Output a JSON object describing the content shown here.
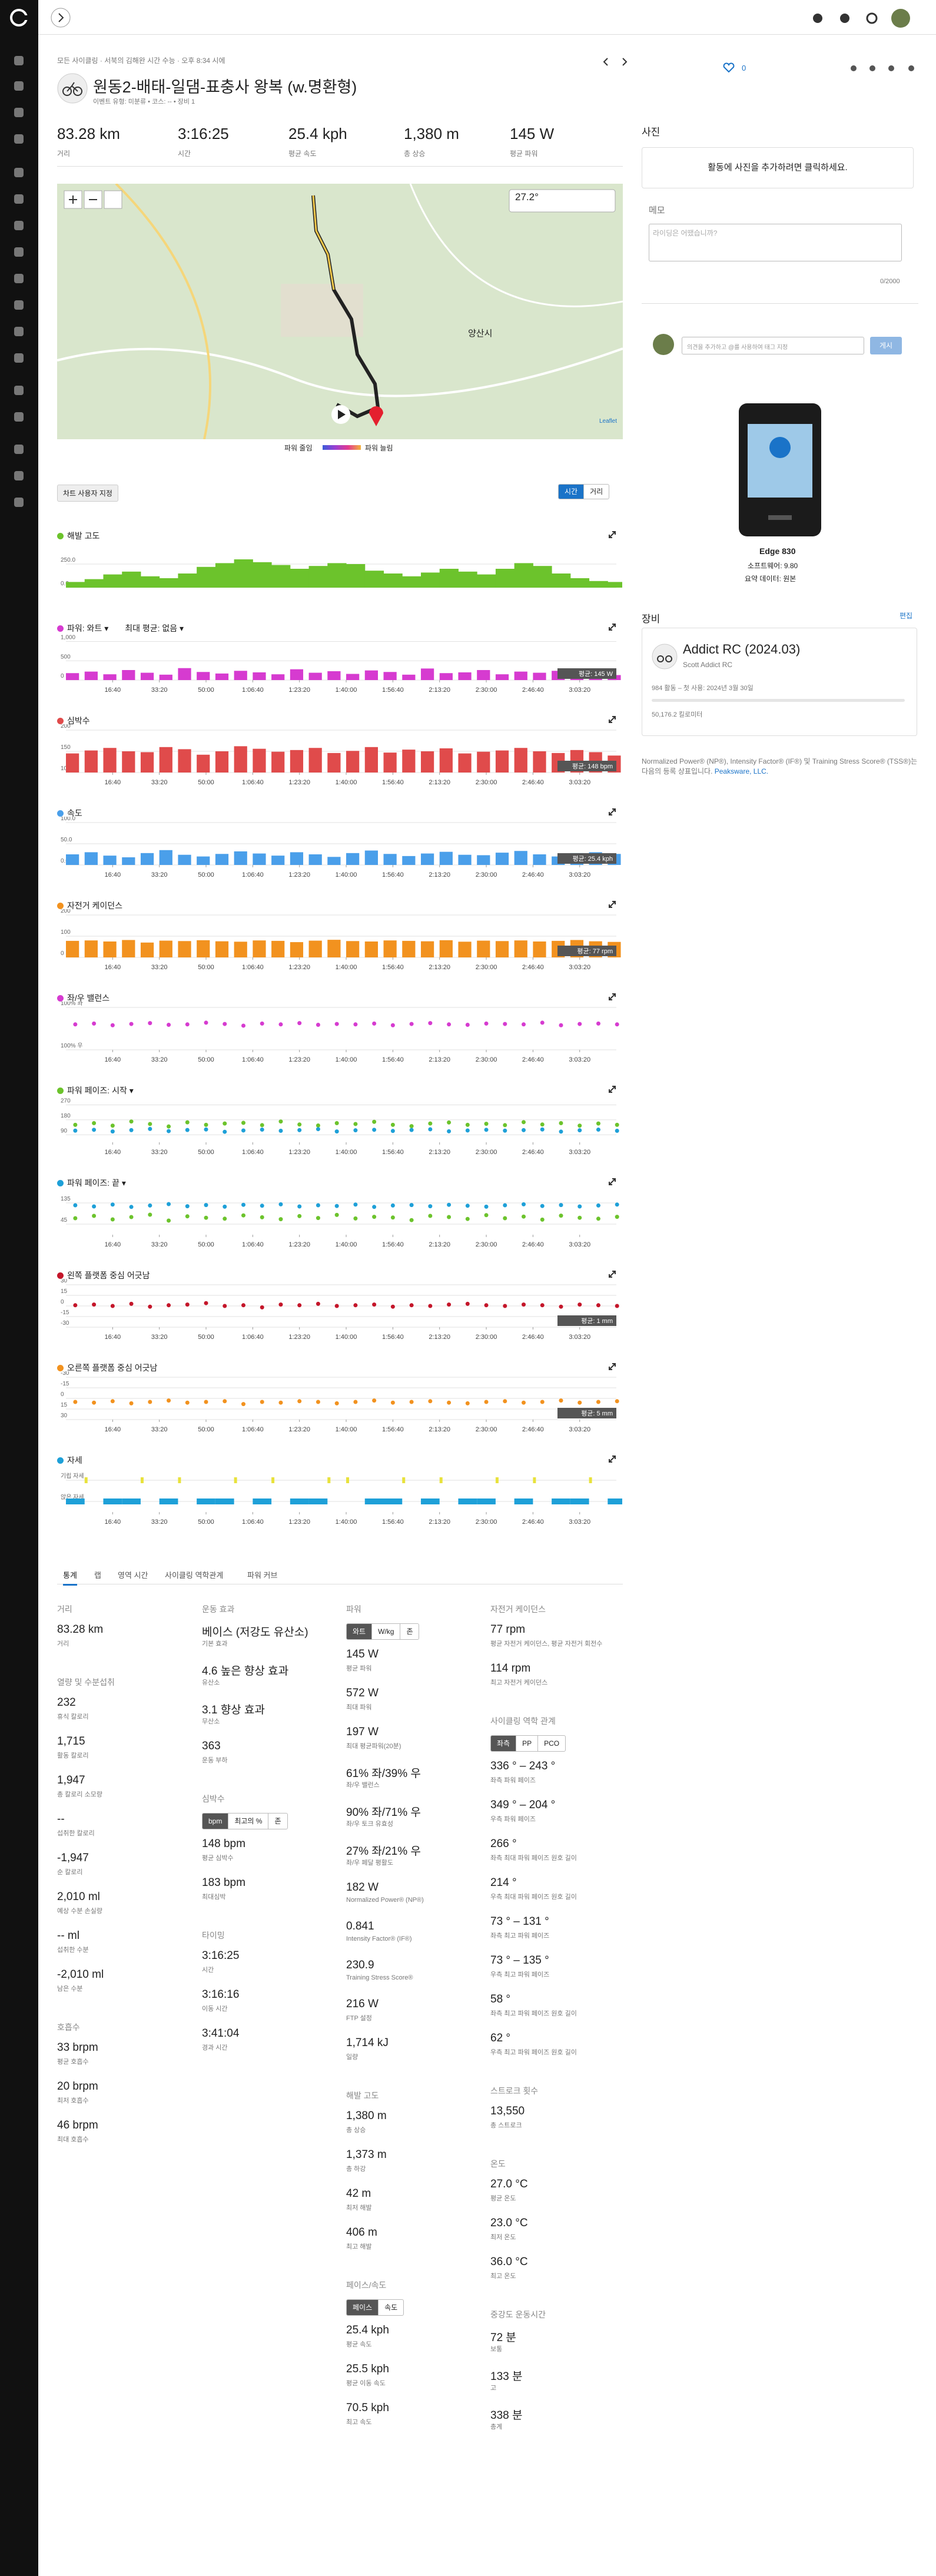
{
  "header": {
    "breadcrumb": "모든 사이클링 · 서북의 김해완 시간 수능 · 오후 8:34 시에",
    "title": "원동2-배태-일댐-표충사 왕복 (w.명환형)",
    "subtitle": "이벤트 유형: 미분류 • 코스: -- • 장비 1",
    "likes": "0"
  },
  "stats": [
    {
      "value": "83.28 km",
      "label": "거리"
    },
    {
      "value": "3:16:25",
      "label": "시간"
    },
    {
      "value": "25.4 kph",
      "label": "평균 속도"
    },
    {
      "value": "1,380 m",
      "label": "총 상승"
    },
    {
      "value": "145 W",
      "label": "평균 파워"
    }
  ],
  "map": {
    "temperature": "27.2°",
    "place": "양산시",
    "attribution": "Leaflet",
    "legend_low": "파워 줄임",
    "legend_high": "파워 늘림"
  },
  "controls": {
    "customize": "차트 사용자 지정",
    "time": "시간",
    "distance": "거리"
  },
  "time_axis": {
    "xlim": [
      0,
      11785
    ],
    "xticks": [
      {
        "value": 1000,
        "label": "16:40"
      },
      {
        "value": 2000,
        "label": "33:20"
      },
      {
        "value": 3000,
        "label": "50:00"
      },
      {
        "value": 4000,
        "label": "1:06:40"
      },
      {
        "value": 5000,
        "label": "1:23:20"
      },
      {
        "value": 6000,
        "label": "1:40:00"
      },
      {
        "value": 7000,
        "label": "1:56:40"
      },
      {
        "value": 8000,
        "label": "2:13:20"
      },
      {
        "value": 9000,
        "label": "2:30:00"
      },
      {
        "value": 10000,
        "label": "2:46:40"
      },
      {
        "value": 11000,
        "label": "3:03:20"
      }
    ],
    "x": [
      0,
      400,
      800,
      1200,
      1600,
      2000,
      2400,
      2800,
      3200,
      3600,
      4000,
      4400,
      4800,
      5200,
      5600,
      6000,
      6400,
      6800,
      7200,
      7600,
      8000,
      8400,
      8800,
      9200,
      9600,
      10000,
      10400,
      10800,
      11200,
      11600
    ]
  },
  "chart_data": [
    {
      "type": "area",
      "title": "해발 고도",
      "color": "#6cc32c",
      "x_labels": false,
      "ylim": [
        0,
        450
      ],
      "yticks": [
        {
          "value": 0,
          "label": "0.0"
        },
        {
          "value": 250,
          "label": "250.0"
        }
      ],
      "values": [
        60,
        90,
        140,
        170,
        120,
        100,
        150,
        220,
        260,
        300,
        270,
        240,
        200,
        230,
        260,
        250,
        180,
        150,
        120,
        160,
        200,
        170,
        140,
        200,
        260,
        230,
        150,
        100,
        70,
        60
      ]
    },
    {
      "type": "bar",
      "title": "파워: 와트 ▾",
      "subtitle": "최대 평균: 없음 ▾",
      "color": "#d63bd0",
      "x_labels": true,
      "ylim": [
        0,
        1100
      ],
      "yticks": [
        0,
        500,
        {
          "value": 1000,
          "label": "1,000"
        }
      ],
      "badge": "평균: 145 W",
      "values": [
        180,
        220,
        150,
        260,
        190,
        140,
        310,
        210,
        170,
        240,
        200,
        150,
        280,
        190,
        230,
        160,
        250,
        210,
        140,
        300,
        180,
        200,
        260,
        150,
        220,
        190,
        240,
        170,
        210,
        130
      ]
    },
    {
      "type": "bar",
      "title": "심박수",
      "color": "#e04b4b",
      "x_labels": true,
      "ylim": [
        100,
        200
      ],
      "yticks": [
        100,
        150,
        200
      ],
      "badge": "평균: 148 bpm",
      "values": [
        145,
        152,
        158,
        150,
        148,
        160,
        155,
        142,
        150,
        162,
        156,
        149,
        153,
        158,
        146,
        151,
        160,
        147,
        154,
        150,
        157,
        145,
        149,
        152,
        158,
        150,
        146,
        153,
        148,
        140
      ]
    },
    {
      "type": "bar",
      "title": "속도",
      "color": "#4a9fea",
      "x_labels": true,
      "ylim": [
        0,
        100
      ],
      "yticks": [
        {
          "value": 0,
          "label": "0.0"
        },
        {
          "value": 50,
          "label": "50.0"
        },
        {
          "value": 100,
          "label": "100.0"
        }
      ],
      "badge": "평균: 25.4 kph",
      "values": [
        25,
        30,
        22,
        18,
        28,
        35,
        24,
        20,
        26,
        32,
        27,
        22,
        30,
        25,
        19,
        28,
        34,
        26,
        21,
        27,
        31,
        24,
        23,
        29,
        33,
        25,
        20,
        28,
        30,
        26
      ]
    },
    {
      "type": "bar",
      "title": "자전거 케이던스",
      "color": "#f2921f",
      "x_labels": true,
      "ylim": [
        0,
        200
      ],
      "yticks": [
        0,
        100,
        200
      ],
      "badge": "평균: 77 rpm",
      "values": [
        78,
        80,
        75,
        82,
        70,
        79,
        77,
        81,
        76,
        74,
        80,
        78,
        72,
        79,
        83,
        77,
        75,
        80,
        78,
        76,
        81,
        74,
        79,
        77,
        80,
        75,
        78,
        82,
        76,
        73
      ]
    },
    {
      "type": "scatter",
      "title": "좌/우 밸런스",
      "color": "#d63bd0",
      "x_labels": true,
      "ylim": [
        0,
        100
      ],
      "yticks": [
        {
          "value": 100,
          "label": "100% 좌"
        },
        {
          "value": 0,
          "label": "100% 우"
        }
      ],
      "values": [
        60,
        62,
        58,
        61,
        63,
        59,
        60,
        64,
        61,
        57,
        62,
        60,
        63,
        59,
        61,
        60,
        62,
        58,
        61,
        63,
        60,
        59,
        62,
        61,
        60,
        64,
        58,
        61,
        62,
        60
      ]
    },
    {
      "type": "scatter",
      "title": "파워 페이즈: 시작 ▾",
      "color": "#6cc32c",
      "x_labels": true,
      "ylim": [
        45,
        300
      ],
      "yticks": [
        270,
        180,
        90
      ],
      "series": [
        {
          "color": "#6cc32c",
          "values": [
            150,
            160,
            145,
            170,
            155,
            140,
            165,
            150,
            158,
            162,
            148,
            170,
            152,
            146,
            160,
            155,
            168,
            150,
            142,
            158,
            164,
            150,
            156,
            148,
            166,
            152,
            160,
            145,
            158,
            150
          ]
        },
        {
          "color": "#1ea0d8",
          "values": [
            115,
            120,
            110,
            118,
            125,
            112,
            119,
            122,
            108,
            116,
            121,
            114,
            118,
            124,
            110,
            117,
            120,
            113,
            119,
            123,
            111,
            116,
            120,
            115,
            118,
            122,
            109,
            117,
            121,
            114
          ]
        }
      ]
    },
    {
      "type": "scatter",
      "title": "파워 페이즈: 끝 ▾",
      "color": "#1ea0d8",
      "x_labels": true,
      "ylim": [
        0,
        180
      ],
      "yticks": [
        135,
        45
      ],
      "series": [
        {
          "color": "#1ea0d8",
          "values": [
            125,
            120,
            128,
            118,
            124,
            130,
            121,
            126,
            119,
            127,
            123,
            129,
            120,
            125,
            122,
            128,
            118,
            124,
            126,
            121,
            127,
            123,
            119,
            125,
            129,
            122,
            126,
            120,
            124,
            128
          ]
        },
        {
          "color": "#6cc32c",
          "values": [
            70,
            80,
            65,
            75,
            85,
            60,
            78,
            72,
            68,
            82,
            74,
            66,
            79,
            71,
            84,
            69,
            76,
            73,
            62,
            80,
            75,
            67,
            83,
            70,
            77,
            64,
            81,
            72,
            68,
            76
          ]
        }
      ]
    },
    {
      "type": "scatter",
      "title": "왼쪽 플랫폼 중심 어긋남",
      "color": "#c4162a",
      "x_labels": true,
      "ylim": [
        -30,
        30
      ],
      "yticks": [
        30,
        15,
        0,
        -15,
        -30
      ],
      "badge": "평균: 1 mm",
      "values": [
        1,
        2,
        0,
        3,
        -1,
        1,
        2,
        4,
        0,
        1,
        -2,
        2,
        1,
        3,
        0,
        1,
        2,
        -1,
        1,
        0,
        2,
        3,
        1,
        0,
        2,
        1,
        -1,
        2,
        1,
        0
      ]
    },
    {
      "type": "scatter",
      "title": "오른쪽 플랫폼 중심 어긋남",
      "color": "#f2921f",
      "x_labels": true,
      "ylim": [
        30,
        -30
      ],
      "yticks": [
        -30,
        -15,
        0,
        15,
        30
      ],
      "badge": "평균: 5 mm",
      "values": [
        5,
        6,
        4,
        7,
        5,
        3,
        6,
        5,
        4,
        8,
        5,
        6,
        4,
        5,
        7,
        5,
        3,
        6,
        5,
        4,
        6,
        7,
        5,
        4,
        6,
        5,
        3,
        6,
        5,
        4
      ]
    },
    {
      "type": "posture",
      "title": "자세",
      "color": "#1ea0d8",
      "x_labels": true,
      "ylim": [
        -0.5,
        1.5
      ],
      "yticks": [
        {
          "value": 1,
          "label": "기립 자세"
        },
        {
          "value": 0,
          "label": "앉은 자세"
        }
      ],
      "values": [
        0,
        1,
        0,
        0,
        1,
        0,
        1,
        0,
        0,
        1,
        0,
        1,
        0,
        0,
        1,
        1,
        0,
        0,
        1,
        0,
        1,
        0,
        0,
        1,
        0,
        1,
        0,
        0,
        1,
        0
      ]
    }
  ],
  "tabs": [
    "통계",
    "랩",
    "영역 시간",
    "사이클링 역학관계",
    "파워 커브"
  ],
  "summary": [
    [
      {
        "title": "거리",
        "items": [
          {
            "value": "83.28 km",
            "label": "거리"
          }
        ]
      },
      {
        "title": "열량 및 수분섭취",
        "items": [
          {
            "value": "232",
            "label": "휴식 칼로리"
          },
          {
            "value": "1,715",
            "label": "활동 칼로리"
          },
          {
            "value": "1,947",
            "label": "총 칼로리 소모량"
          },
          {
            "value": "--",
            "label": "섭취한 칼로리"
          },
          {
            "value": "-1,947",
            "label": "순 칼로리"
          },
          {
            "value": "2,010 ml",
            "label": "예상 수분 손실량"
          },
          {
            "value": "-- ml",
            "label": "섭취한 수분"
          },
          {
            "value": "-2,010 ml",
            "label": "남은 수분"
          }
        ]
      },
      {
        "title": "호흡수",
        "items": [
          {
            "value": "33 brpm",
            "label": "평균 호흡수"
          },
          {
            "value": "20 brpm",
            "label": "최저 호흡수"
          },
          {
            "value": "46 brpm",
            "label": "최대 호흡수"
          }
        ]
      }
    ],
    [
      {
        "title": "운동 효과",
        "items": [
          {
            "value": "베이스 (저강도 유산소)",
            "label": "기본 효과"
          },
          {
            "value": "4.6 높은 향상 효과",
            "label": "유산소"
          },
          {
            "value": "3.1 향상 효과",
            "label": "무산소"
          },
          {
            "value": "363",
            "label": "운동 부하"
          }
        ]
      },
      {
        "title": "심박수",
        "toggle": [
          "bpm",
          "최고의 %",
          "존"
        ],
        "items": [
          {
            "value": "148 bpm",
            "label": "평균 심박수"
          },
          {
            "value": "183 bpm",
            "label": "최대심박"
          }
        ]
      },
      {
        "title": "타이밍",
        "items": [
          {
            "value": "3:16:25",
            "label": "시간"
          },
          {
            "value": "3:16:16",
            "label": "이동 시간"
          },
          {
            "value": "3:41:04",
            "label": "경과 시간"
          }
        ]
      }
    ],
    [
      {
        "title": "파워",
        "toggle": [
          "와트",
          "W/kg",
          "존"
        ],
        "items": [
          {
            "value": "145 W",
            "label": "평균 파워"
          },
          {
            "value": "572 W",
            "label": "최대 파워"
          },
          {
            "value": "197 W",
            "label": "최대 평균파워(20분)"
          },
          {
            "value": "61% 좌/39% 우",
            "label": "좌/우 밸런스"
          },
          {
            "value": "90% 좌/71% 우",
            "label": "좌/우 토크 유효성"
          },
          {
            "value": "27% 좌/21% 우",
            "label": "좌/우 페달 평활도"
          },
          {
            "value": "182 W",
            "label": "Normalized Power® (NP®)"
          },
          {
            "value": "0.841",
            "label": "Intensity Factor® (IF®)"
          },
          {
            "value": "230.9",
            "label": "Training Stress Score®"
          },
          {
            "value": "216 W",
            "label": "FTP 설정"
          },
          {
            "value": "1,714 kJ",
            "label": "일량"
          }
        ]
      },
      {
        "title": "해발 고도",
        "items": [
          {
            "value": "1,380 m",
            "label": "총 상승"
          },
          {
            "value": "1,373 m",
            "label": "총 하강"
          },
          {
            "value": "42 m",
            "label": "최저 해발"
          },
          {
            "value": "406 m",
            "label": "최고 해발"
          }
        ]
      },
      {
        "title": "페이스/속도",
        "toggle": [
          "페이스",
          "속도"
        ],
        "items": [
          {
            "value": "25.4 kph",
            "label": "평균 속도"
          },
          {
            "value": "25.5 kph",
            "label": "평균 이동 속도"
          },
          {
            "value": "70.5 kph",
            "label": "최고 속도"
          }
        ]
      }
    ],
    [
      {
        "title": "자전거 케이던스",
        "items": [
          {
            "value": "77 rpm",
            "label": "평균 자전거 케이던스, 평균 자전거 회전수"
          },
          {
            "value": "114 rpm",
            "label": "최고 자전거 케이던스"
          }
        ]
      },
      {
        "title": "사이클링 역학 관계",
        "toggle": [
          "좌측",
          "PP",
          "PCO"
        ],
        "items": [
          {
            "value": "336 ° – 243 °",
            "label": "좌측 파워 페이즈"
          },
          {
            "value": "349 ° – 204 °",
            "label": "우측 파워 페이즈"
          },
          {
            "value": "266 °",
            "label": "좌측 최대 파워 페이즈 원호 길이"
          },
          {
            "value": "214 °",
            "label": "우측 최대 파워 페이즈 원호 길이"
          },
          {
            "value": "73 ° – 131 °",
            "label": "좌측 최고 파워 페이즈"
          },
          {
            "value": "73 ° – 135 °",
            "label": "우측 최고 파워 페이즈"
          },
          {
            "value": "58 °",
            "label": "좌측 최고 파워 페이즈 원호 길이"
          },
          {
            "value": "62 °",
            "label": "우측 최고 파워 페이즈 원호 길이"
          }
        ]
      },
      {
        "title": "스트로크 횟수",
        "items": [
          {
            "value": "13,550",
            "label": "총 스트로크"
          }
        ]
      },
      {
        "title": "온도",
        "items": [
          {
            "value": "27.0 °C",
            "label": "평균 온도"
          },
          {
            "value": "23.0 °C",
            "label": "최저 온도"
          },
          {
            "value": "36.0 °C",
            "label": "최고 온도"
          }
        ]
      },
      {
        "title": "중강도 운동시간",
        "items": [
          {
            "value": "72 분",
            "label": "보통"
          },
          {
            "value": "133 분",
            "label": "고"
          },
          {
            "value": "338 분",
            "label": "총계"
          }
        ]
      }
    ]
  ],
  "side": {
    "photos_title": "사진",
    "photos_add": "활동에 사진을 추가하려면 클릭하세요.",
    "notes_title": "메모",
    "notes_placeholder": "라이딩은 어땠습니까?",
    "notes_count": "0/2000",
    "comment_placeholder": "의견을 추가하고 @를 사용하여 태그 지정",
    "comment_post": "게시",
    "device_name": "Edge 830",
    "device_software": "소프트웨어: 9.80",
    "device_summary": "요약 데이터: 원본",
    "gear_title": "장비",
    "gear_edit": "편집",
    "gear_name": "Addict RC (2024.03)",
    "gear_model": "Scott Addict RC",
    "gear_usage": "984 활동 – 첫 사용: 2024년 3월 30일",
    "gear_distance": "50,176.2 킬로미터",
    "footnote": "Normalized Power® (NP®), Intensity Factor® (IF®) 및 Training Stress Score® (TSS®)는 다음의 등록 상표입니다.",
    "footnote_link": "Peaksware, LLC."
  }
}
